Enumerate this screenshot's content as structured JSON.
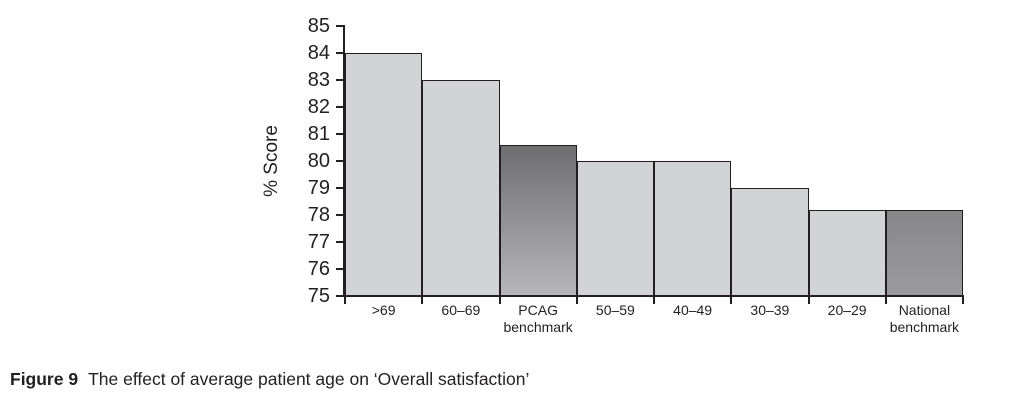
{
  "figure": {
    "caption_prefix": "Figure 9",
    "caption_text": "The effect of average patient age on ‘Overall satisfaction’"
  },
  "chart_data": {
    "type": "bar",
    "title": "",
    "xlabel": "",
    "ylabel": "% Score",
    "ylim": [
      75,
      85
    ],
    "yticks": [
      75,
      76,
      77,
      78,
      79,
      80,
      81,
      82,
      83,
      84,
      85
    ],
    "categories": [
      ">69",
      "60–69",
      "PCAG benchmark",
      "50–59",
      "40–49",
      "30–39",
      "20–29",
      "National benchmark"
    ],
    "values": [
      84,
      83,
      80.6,
      80,
      80,
      79,
      78.2,
      78.2
    ],
    "bar_styles": [
      "plain",
      "plain",
      "pcag_benchmark",
      "plain",
      "plain",
      "plain",
      "plain",
      "national_benchmark"
    ],
    "grid": false,
    "legend": "none"
  },
  "colors": {
    "bar_fill": "#d2d3d5",
    "bar_outline": "#231f20",
    "axis": "#231f20",
    "text": "#231f20",
    "pcag_gradient_top": "#6e6e70",
    "pcag_gradient_bottom": "#b6b6b8",
    "national_gradient_top": "#87878a",
    "national_gradient_bottom": "#9a9a9d"
  }
}
